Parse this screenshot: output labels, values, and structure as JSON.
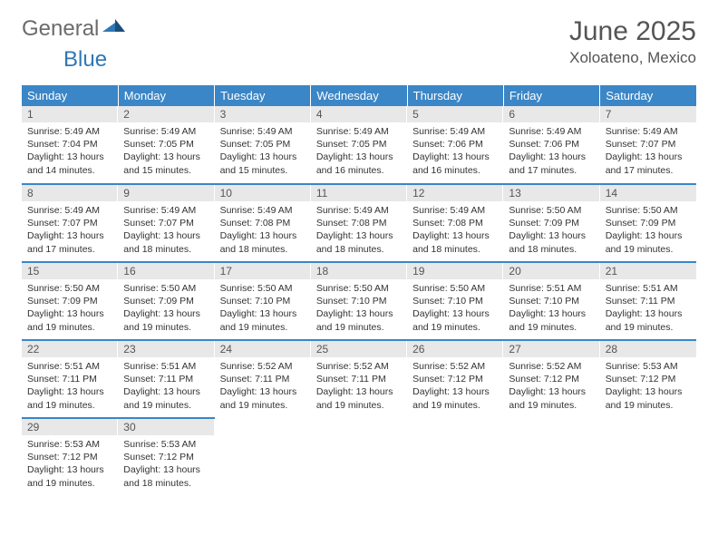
{
  "logo": {
    "part1": "General",
    "part2": "Blue"
  },
  "title": "June 2025",
  "location": "Xoloateno, Mexico",
  "colors": {
    "header_bg": "#3b86c6",
    "header_text": "#ffffff",
    "daynum_bg": "#e8e8e8",
    "border": "#3b86c6",
    "logo_gray": "#6b6b6b",
    "logo_blue": "#2f77b6"
  },
  "weekdays": [
    "Sunday",
    "Monday",
    "Tuesday",
    "Wednesday",
    "Thursday",
    "Friday",
    "Saturday"
  ],
  "weeks": [
    [
      {
        "n": "1",
        "sr": "Sunrise: 5:49 AM",
        "ss": "Sunset: 7:04 PM",
        "dl": "Daylight: 13 hours and 14 minutes."
      },
      {
        "n": "2",
        "sr": "Sunrise: 5:49 AM",
        "ss": "Sunset: 7:05 PM",
        "dl": "Daylight: 13 hours and 15 minutes."
      },
      {
        "n": "3",
        "sr": "Sunrise: 5:49 AM",
        "ss": "Sunset: 7:05 PM",
        "dl": "Daylight: 13 hours and 15 minutes."
      },
      {
        "n": "4",
        "sr": "Sunrise: 5:49 AM",
        "ss": "Sunset: 7:05 PM",
        "dl": "Daylight: 13 hours and 16 minutes."
      },
      {
        "n": "5",
        "sr": "Sunrise: 5:49 AM",
        "ss": "Sunset: 7:06 PM",
        "dl": "Daylight: 13 hours and 16 minutes."
      },
      {
        "n": "6",
        "sr": "Sunrise: 5:49 AM",
        "ss": "Sunset: 7:06 PM",
        "dl": "Daylight: 13 hours and 17 minutes."
      },
      {
        "n": "7",
        "sr": "Sunrise: 5:49 AM",
        "ss": "Sunset: 7:07 PM",
        "dl": "Daylight: 13 hours and 17 minutes."
      }
    ],
    [
      {
        "n": "8",
        "sr": "Sunrise: 5:49 AM",
        "ss": "Sunset: 7:07 PM",
        "dl": "Daylight: 13 hours and 17 minutes."
      },
      {
        "n": "9",
        "sr": "Sunrise: 5:49 AM",
        "ss": "Sunset: 7:07 PM",
        "dl": "Daylight: 13 hours and 18 minutes."
      },
      {
        "n": "10",
        "sr": "Sunrise: 5:49 AM",
        "ss": "Sunset: 7:08 PM",
        "dl": "Daylight: 13 hours and 18 minutes."
      },
      {
        "n": "11",
        "sr": "Sunrise: 5:49 AM",
        "ss": "Sunset: 7:08 PM",
        "dl": "Daylight: 13 hours and 18 minutes."
      },
      {
        "n": "12",
        "sr": "Sunrise: 5:49 AM",
        "ss": "Sunset: 7:08 PM",
        "dl": "Daylight: 13 hours and 18 minutes."
      },
      {
        "n": "13",
        "sr": "Sunrise: 5:50 AM",
        "ss": "Sunset: 7:09 PM",
        "dl": "Daylight: 13 hours and 18 minutes."
      },
      {
        "n": "14",
        "sr": "Sunrise: 5:50 AM",
        "ss": "Sunset: 7:09 PM",
        "dl": "Daylight: 13 hours and 19 minutes."
      }
    ],
    [
      {
        "n": "15",
        "sr": "Sunrise: 5:50 AM",
        "ss": "Sunset: 7:09 PM",
        "dl": "Daylight: 13 hours and 19 minutes."
      },
      {
        "n": "16",
        "sr": "Sunrise: 5:50 AM",
        "ss": "Sunset: 7:09 PM",
        "dl": "Daylight: 13 hours and 19 minutes."
      },
      {
        "n": "17",
        "sr": "Sunrise: 5:50 AM",
        "ss": "Sunset: 7:10 PM",
        "dl": "Daylight: 13 hours and 19 minutes."
      },
      {
        "n": "18",
        "sr": "Sunrise: 5:50 AM",
        "ss": "Sunset: 7:10 PM",
        "dl": "Daylight: 13 hours and 19 minutes."
      },
      {
        "n": "19",
        "sr": "Sunrise: 5:50 AM",
        "ss": "Sunset: 7:10 PM",
        "dl": "Daylight: 13 hours and 19 minutes."
      },
      {
        "n": "20",
        "sr": "Sunrise: 5:51 AM",
        "ss": "Sunset: 7:10 PM",
        "dl": "Daylight: 13 hours and 19 minutes."
      },
      {
        "n": "21",
        "sr": "Sunrise: 5:51 AM",
        "ss": "Sunset: 7:11 PM",
        "dl": "Daylight: 13 hours and 19 minutes."
      }
    ],
    [
      {
        "n": "22",
        "sr": "Sunrise: 5:51 AM",
        "ss": "Sunset: 7:11 PM",
        "dl": "Daylight: 13 hours and 19 minutes."
      },
      {
        "n": "23",
        "sr": "Sunrise: 5:51 AM",
        "ss": "Sunset: 7:11 PM",
        "dl": "Daylight: 13 hours and 19 minutes."
      },
      {
        "n": "24",
        "sr": "Sunrise: 5:52 AM",
        "ss": "Sunset: 7:11 PM",
        "dl": "Daylight: 13 hours and 19 minutes."
      },
      {
        "n": "25",
        "sr": "Sunrise: 5:52 AM",
        "ss": "Sunset: 7:11 PM",
        "dl": "Daylight: 13 hours and 19 minutes."
      },
      {
        "n": "26",
        "sr": "Sunrise: 5:52 AM",
        "ss": "Sunset: 7:12 PM",
        "dl": "Daylight: 13 hours and 19 minutes."
      },
      {
        "n": "27",
        "sr": "Sunrise: 5:52 AM",
        "ss": "Sunset: 7:12 PM",
        "dl": "Daylight: 13 hours and 19 minutes."
      },
      {
        "n": "28",
        "sr": "Sunrise: 5:53 AM",
        "ss": "Sunset: 7:12 PM",
        "dl": "Daylight: 13 hours and 19 minutes."
      }
    ],
    [
      {
        "n": "29",
        "sr": "Sunrise: 5:53 AM",
        "ss": "Sunset: 7:12 PM",
        "dl": "Daylight: 13 hours and 19 minutes."
      },
      {
        "n": "30",
        "sr": "Sunrise: 5:53 AM",
        "ss": "Sunset: 7:12 PM",
        "dl": "Daylight: 13 hours and 18 minutes."
      },
      null,
      null,
      null,
      null,
      null
    ]
  ]
}
